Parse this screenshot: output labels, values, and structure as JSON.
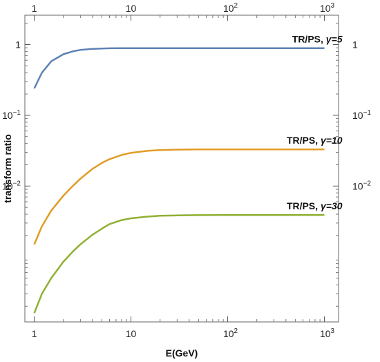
{
  "chart_data": {
    "type": "line",
    "title": "",
    "xlabel": "E(GeV)",
    "ylabel": "transform ratio",
    "x_scale": "log",
    "y_scale": "log",
    "xlim": [
      0.8,
      1400
    ],
    "ylim": [
      0.00012,
      2.6
    ],
    "grid": false,
    "x_ticks": [
      {
        "value": 1,
        "base": "1",
        "exp": ""
      },
      {
        "value": 10,
        "base": "10",
        "exp": ""
      },
      {
        "value": 100,
        "base": "10",
        "exp": "2"
      },
      {
        "value": 1000,
        "base": "10",
        "exp": "3"
      }
    ],
    "y_ticks": [
      {
        "value": 1,
        "base": "1",
        "exp": ""
      },
      {
        "value": 0.1,
        "base": "10",
        "exp": "−1"
      },
      {
        "value": 0.01,
        "base": "10",
        "exp": "−2"
      }
    ],
    "x": [
      1,
      1.2,
      1.5,
      2,
      2.5,
      3,
      4,
      5,
      6,
      8,
      10,
      15,
      20,
      30,
      50,
      100,
      200,
      500,
      1000
    ],
    "series": [
      {
        "name": "TR/PS, γ=5",
        "label_text": "TR/PS, ",
        "label_gamma": "γ=5",
        "color": "#5e81b5",
        "values": [
          0.24,
          0.4,
          0.58,
          0.73,
          0.8,
          0.84,
          0.87,
          0.88,
          0.885,
          0.888,
          0.89,
          0.89,
          0.89,
          0.89,
          0.89,
          0.89,
          0.89,
          0.89,
          0.89
        ]
      },
      {
        "name": "TR/PS, γ=10",
        "label_text": "TR/PS, ",
        "label_gamma": "γ=10",
        "color": "#e19c24",
        "values": [
          0.0015,
          0.0027,
          0.0045,
          0.0073,
          0.01,
          0.0127,
          0.0175,
          0.0212,
          0.024,
          0.0275,
          0.0295,
          0.0315,
          0.0322,
          0.0327,
          0.0329,
          0.033,
          0.033,
          0.033,
          0.033
        ]
      },
      {
        "name": "TR/PS, γ=30",
        "label_text": "TR/PS, ",
        "label_gamma": "γ=30",
        "color": "#8fb032",
        "values": [
          0.00016,
          0.0003,
          0.0005,
          0.00085,
          0.00118,
          0.0015,
          0.00205,
          0.0025,
          0.0029,
          0.0033,
          0.0035,
          0.0037,
          0.0038,
          0.00385,
          0.00388,
          0.0039,
          0.0039,
          0.0039,
          0.0039
        ]
      }
    ]
  }
}
